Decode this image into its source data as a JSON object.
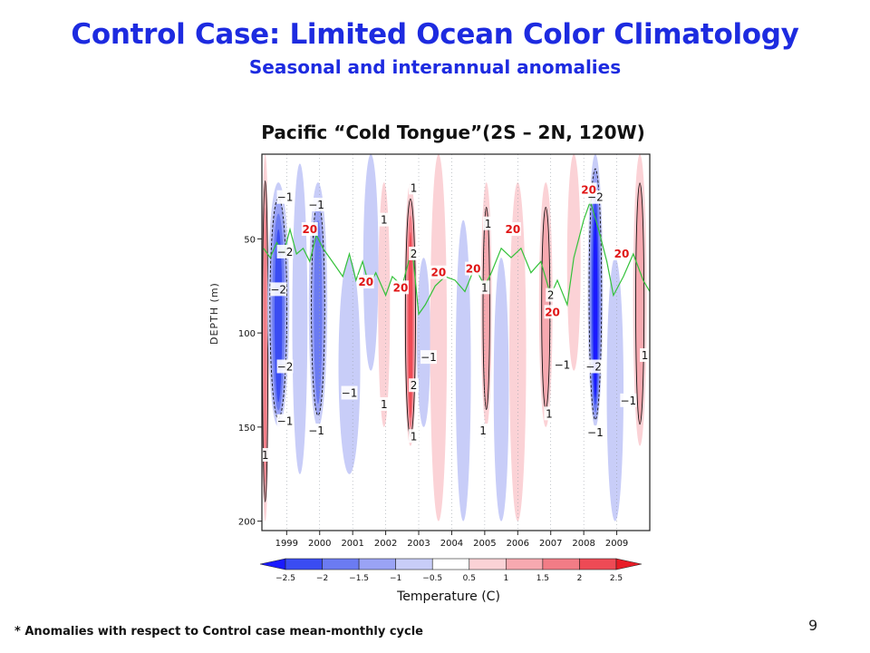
{
  "slide": {
    "title": "Control Case:  Limited Ocean Color Climatology",
    "subtitle": "Seasonal and interannual anomalies",
    "footnote": "* Anomalies with respect to Control case mean-monthly cycle",
    "page_number": "9"
  },
  "chart_data": {
    "type": "heatmap",
    "title": "Pacific “Cold Tongue”(2S – 2N, 120W)",
    "ylabel": "DEPTH  (m)",
    "colorbar_label": "Temperature (C)",
    "x_ticks": [
      "1999",
      "2000",
      "2001",
      "2002",
      "2003",
      "2004",
      "2005",
      "2006",
      "2007",
      "2008",
      "2009"
    ],
    "x_range": [
      1998.25,
      2010.0
    ],
    "y_ticks": [
      50,
      100,
      150,
      200
    ],
    "y_range": [
      5,
      205
    ],
    "y_inverted": true,
    "colorbar_levels": [
      "-2.5",
      "-2",
      "-1.5",
      "-1",
      "-0.5",
      "0.5",
      "1",
      "1.5",
      "2",
      "2.5"
    ],
    "colorbar_colors": [
      "#1a1aff",
      "#3a4cf2",
      "#6b7bf2",
      "#9aa3f5",
      "#c8cdf8",
      "#ffffff",
      "#fbd2d6",
      "#f7a9b0",
      "#f27c86",
      "#ee4a55",
      "#e81c26"
    ],
    "anomaly_blobs": [
      {
        "t": 1998.35,
        "w": 0.12,
        "top": 5,
        "bot": 200,
        "v": 1.6
      },
      {
        "t": 1998.75,
        "w": 0.55,
        "top": 20,
        "bot": 150,
        "v": -2.2
      },
      {
        "t": 1999.4,
        "w": 0.35,
        "top": 10,
        "bot": 175,
        "v": -0.6
      },
      {
        "t": 1999.95,
        "w": 0.45,
        "top": 20,
        "bot": 150,
        "v": -1.6
      },
      {
        "t": 2000.9,
        "w": 0.55,
        "top": 60,
        "bot": 175,
        "v": -0.8
      },
      {
        "t": 2001.55,
        "w": 0.35,
        "top": 5,
        "bot": 120,
        "v": -0.5
      },
      {
        "t": 2001.95,
        "w": 0.25,
        "top": 20,
        "bot": 150,
        "v": 0.8
      },
      {
        "t": 2002.75,
        "w": 0.28,
        "top": 20,
        "bot": 160,
        "v": 2.2
      },
      {
        "t": 2003.15,
        "w": 0.3,
        "top": 60,
        "bot": 150,
        "v": -0.8
      },
      {
        "t": 2003.6,
        "w": 0.4,
        "top": 5,
        "bot": 200,
        "v": 0.6
      },
      {
        "t": 2004.35,
        "w": 0.35,
        "top": 40,
        "bot": 200,
        "v": -0.5
      },
      {
        "t": 2005.05,
        "w": 0.22,
        "top": 20,
        "bot": 150,
        "v": 1.2
      },
      {
        "t": 2005.5,
        "w": 0.35,
        "top": 60,
        "bot": 200,
        "v": -0.5
      },
      {
        "t": 2006.0,
        "w": 0.4,
        "top": 20,
        "bot": 200,
        "v": 0.5
      },
      {
        "t": 2006.85,
        "w": 0.3,
        "top": 20,
        "bot": 150,
        "v": 1.4
      },
      {
        "t": 2007.7,
        "w": 0.3,
        "top": 5,
        "bot": 120,
        "v": 0.8
      },
      {
        "t": 2008.35,
        "w": 0.35,
        "top": 5,
        "bot": 150,
        "v": -2.6
      },
      {
        "t": 2008.95,
        "w": 0.4,
        "top": 60,
        "bot": 200,
        "v": -0.8
      },
      {
        "t": 2009.7,
        "w": 0.3,
        "top": 5,
        "bot": 160,
        "v": 1.3
      }
    ],
    "isotherm_20C_depth": [
      [
        1998.3,
        55
      ],
      [
        1998.5,
        60
      ],
      [
        1998.7,
        52
      ],
      [
        1998.9,
        58
      ],
      [
        1999.1,
        45
      ],
      [
        1999.3,
        58
      ],
      [
        1999.5,
        55
      ],
      [
        1999.7,
        62
      ],
      [
        1999.9,
        48
      ],
      [
        2000.1,
        55
      ],
      [
        2000.3,
        60
      ],
      [
        2000.5,
        65
      ],
      [
        2000.7,
        70
      ],
      [
        2000.9,
        58
      ],
      [
        2001.1,
        72
      ],
      [
        2001.3,
        62
      ],
      [
        2001.5,
        75
      ],
      [
        2001.7,
        68
      ],
      [
        2002.0,
        80
      ],
      [
        2002.2,
        70
      ],
      [
        2002.5,
        75
      ],
      [
        2002.8,
        55
      ],
      [
        2003.0,
        90
      ],
      [
        2003.2,
        85
      ],
      [
        2003.5,
        75
      ],
      [
        2003.8,
        70
      ],
      [
        2004.1,
        72
      ],
      [
        2004.4,
        78
      ],
      [
        2004.7,
        65
      ],
      [
        2005.0,
        75
      ],
      [
        2005.2,
        68
      ],
      [
        2005.5,
        55
      ],
      [
        2005.8,
        60
      ],
      [
        2006.1,
        55
      ],
      [
        2006.4,
        68
      ],
      [
        2006.7,
        62
      ],
      [
        2007.0,
        80
      ],
      [
        2007.2,
        72
      ],
      [
        2007.5,
        85
      ],
      [
        2007.7,
        60
      ],
      [
        2008.0,
        40
      ],
      [
        2008.2,
        30
      ],
      [
        2008.45,
        45
      ],
      [
        2008.7,
        62
      ],
      [
        2008.9,
        80
      ],
      [
        2009.2,
        70
      ],
      [
        2009.5,
        58
      ],
      [
        2009.8,
        72
      ],
      [
        2010.0,
        78
      ]
    ],
    "contour_labels": [
      {
        "text": "-1",
        "t": 1998.95,
        "d": 28,
        "color": "black"
      },
      {
        "text": "-1",
        "t": 1999.9,
        "d": 32,
        "color": "black"
      },
      {
        "text": "-2",
        "t": 1998.95,
        "d": 57,
        "color": "black"
      },
      {
        "text": "-2",
        "t": 1998.75,
        "d": 77,
        "color": "black"
      },
      {
        "text": "-2",
        "t": 1998.95,
        "d": 118,
        "color": "black"
      },
      {
        "text": "-1",
        "t": 1998.95,
        "d": 147,
        "color": "black"
      },
      {
        "text": "-1",
        "t": 1999.9,
        "d": 152,
        "color": "black"
      },
      {
        "text": "-1",
        "t": 2000.9,
        "d": 132,
        "color": "black"
      },
      {
        "text": "-1",
        "t": 2003.3,
        "d": 113,
        "color": "black"
      },
      {
        "text": "-1",
        "t": 2007.35,
        "d": 117,
        "color": "black"
      },
      {
        "text": "-2",
        "t": 2008.3,
        "d": 118,
        "color": "black"
      },
      {
        "text": "-1",
        "t": 2008.35,
        "d": 153,
        "color": "black"
      },
      {
        "text": "-1",
        "t": 2009.35,
        "d": 136,
        "color": "black"
      },
      {
        "text": "-2",
        "t": 2008.35,
        "d": 28,
        "color": "black"
      },
      {
        "text": "1",
        "t": 2001.95,
        "d": 40,
        "color": "black"
      },
      {
        "text": "1",
        "t": 2002.85,
        "d": 23,
        "color": "black"
      },
      {
        "text": "2",
        "t": 2002.85,
        "d": 58,
        "color": "black"
      },
      {
        "text": "2",
        "t": 2002.85,
        "d": 128,
        "color": "black"
      },
      {
        "text": "1",
        "t": 2001.95,
        "d": 138,
        "color": "black"
      },
      {
        "text": "1",
        "t": 2002.85,
        "d": 155,
        "color": "black"
      },
      {
        "text": "1",
        "t": 2005.1,
        "d": 42,
        "color": "black"
      },
      {
        "text": "1",
        "t": 2005.0,
        "d": 76,
        "color": "black"
      },
      {
        "text": "1",
        "t": 2004.95,
        "d": 152,
        "color": "black"
      },
      {
        "text": "2",
        "t": 2007.0,
        "d": 80,
        "color": "black"
      },
      {
        "text": "1",
        "t": 2006.95,
        "d": 143,
        "color": "black"
      },
      {
        "text": "1",
        "t": 1998.35,
        "d": 165,
        "color": "black"
      },
      {
        "text": "1",
        "t": 2009.85,
        "d": 112,
        "color": "black"
      },
      {
        "text": "20",
        "t": 1999.7,
        "d": 45,
        "color": "red"
      },
      {
        "text": "20",
        "t": 2001.4,
        "d": 73,
        "color": "red"
      },
      {
        "text": "20",
        "t": 2002.45,
        "d": 76,
        "color": "red"
      },
      {
        "text": "20",
        "t": 2003.6,
        "d": 68,
        "color": "red"
      },
      {
        "text": "20",
        "t": 2004.65,
        "d": 66,
        "color": "red"
      },
      {
        "text": "20",
        "t": 2005.85,
        "d": 45,
        "color": "red"
      },
      {
        "text": "20",
        "t": 2007.05,
        "d": 89,
        "color": "red"
      },
      {
        "text": "20",
        "t": 2008.15,
        "d": 24,
        "color": "red"
      },
      {
        "text": "20",
        "t": 2009.15,
        "d": 58,
        "color": "red"
      }
    ]
  }
}
